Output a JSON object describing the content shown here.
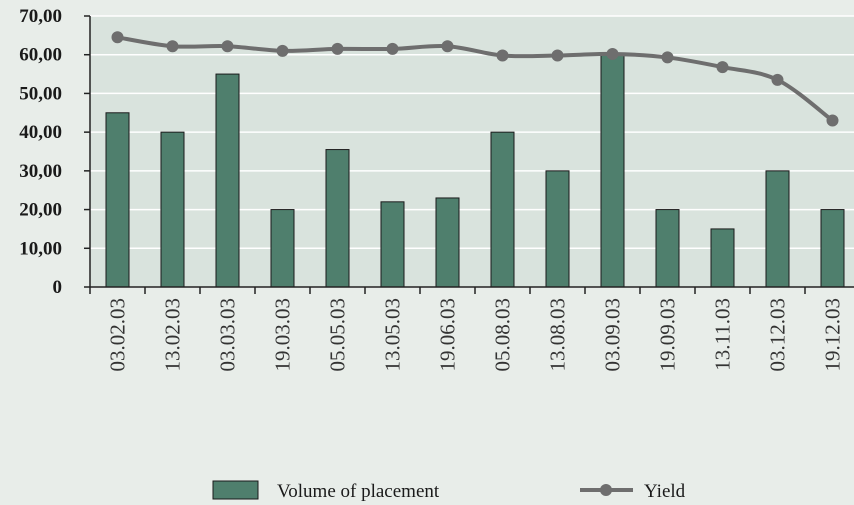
{
  "chart_data": {
    "type": "bar",
    "categories": [
      "03.02.03",
      "13.02.03",
      "03.03.03",
      "19.03.03",
      "05.05.03",
      "13.05.03",
      "19.06.03",
      "05.08.03",
      "13.08.03",
      "03.09.03",
      "19.09.03",
      "13.11.03",
      "03.12.03",
      "19.12.03"
    ],
    "series": [
      {
        "name": "Volume of placement",
        "kind": "bar",
        "color": "#4f7f6d",
        "values": [
          45,
          40,
          55,
          20,
          35.5,
          22,
          23,
          40,
          30,
          60,
          20,
          15,
          30,
          20
        ]
      },
      {
        "name": "Yield",
        "kind": "line",
        "color": "#6e6e6e",
        "values": [
          64.5,
          62.2,
          62.2,
          61,
          61.5,
          61.5,
          62.2,
          59.8,
          59.8,
          60.2,
          59.3,
          56.8,
          53.5,
          43
        ]
      }
    ],
    "ylim": [
      0,
      70
    ],
    "yticks": [
      "0",
      "10,00",
      "20,00",
      "30,00",
      "40,00",
      "50,00",
      "60,00",
      "70,00"
    ],
    "grid": true,
    "legend_position": "bottom",
    "plot_background": "#d9e3dd",
    "page_background": "#e8ede9"
  }
}
